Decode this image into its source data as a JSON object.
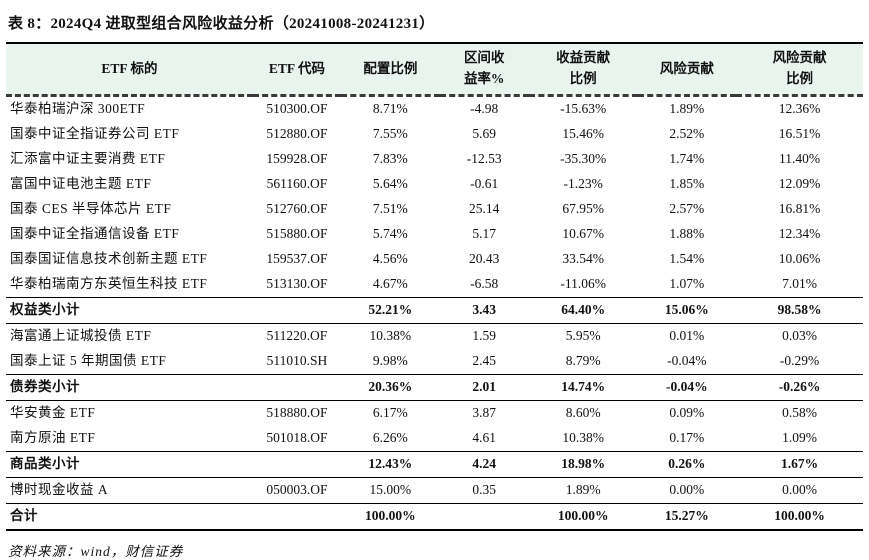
{
  "title": "表 8：2024Q4 进取型组合风险收益分析（20241008-20241231）",
  "source_note": "资料来源：wind，财信证券",
  "colors": {
    "header_background": "#e9f4ef",
    "border": "#000000",
    "text": "#111111"
  },
  "table": {
    "headers": [
      "ETF 标的",
      "ETF 代码",
      "配置比例",
      "区间收\n益率%",
      "收益贡献\n比例",
      "风险贡献",
      "风险贡献\n比例"
    ],
    "rows": [
      {
        "style": "normal",
        "cells": [
          "华泰柏瑞沪深 300ETF",
          "510300.OF",
          "8.71%",
          "-4.98",
          "-15.63%",
          "1.89%",
          "12.36%"
        ]
      },
      {
        "style": "normal",
        "cells": [
          "国泰中证全指证券公司 ETF",
          "512880.OF",
          "7.55%",
          "5.69",
          "15.46%",
          "2.52%",
          "16.51%"
        ]
      },
      {
        "style": "normal",
        "cells": [
          "汇添富中证主要消费 ETF",
          "159928.OF",
          "7.83%",
          "-12.53",
          "-35.30%",
          "1.74%",
          "11.40%"
        ]
      },
      {
        "style": "normal",
        "cells": [
          "富国中证电池主题 ETF",
          "561160.OF",
          "5.64%",
          "-0.61",
          "-1.23%",
          "1.85%",
          "12.09%"
        ]
      },
      {
        "style": "normal",
        "cells": [
          "国泰 CES 半导体芯片 ETF",
          "512760.OF",
          "7.51%",
          "25.14",
          "67.95%",
          "2.57%",
          "16.81%"
        ]
      },
      {
        "style": "normal",
        "cells": [
          "国泰中证全指通信设备 ETF",
          "515880.OF",
          "5.74%",
          "5.17",
          "10.67%",
          "1.88%",
          "12.34%"
        ]
      },
      {
        "style": "normal",
        "cells": [
          "国泰国证信息技术创新主题 ETF",
          "159537.OF",
          "4.56%",
          "20.43",
          "33.54%",
          "1.54%",
          "10.06%"
        ]
      },
      {
        "style": "normal",
        "cells": [
          "华泰柏瑞南方东英恒生科技 ETF",
          "513130.OF",
          "4.67%",
          "-6.58",
          "-11.06%",
          "1.07%",
          "7.01%"
        ]
      },
      {
        "style": "subtotal",
        "cells": [
          "权益类小计",
          "",
          "52.21%",
          "3.43",
          "64.40%",
          "15.06%",
          "98.58%"
        ]
      },
      {
        "style": "normal",
        "cells": [
          "海富通上证城投债 ETF",
          "511220.OF",
          "10.38%",
          "1.59",
          "5.95%",
          "0.01%",
          "0.03%"
        ]
      },
      {
        "style": "normal",
        "cells": [
          "国泰上证 5 年期国债 ETF",
          "511010.SH",
          "9.98%",
          "2.45",
          "8.79%",
          "-0.04%",
          "-0.29%"
        ]
      },
      {
        "style": "subtotal",
        "cells": [
          "债券类小计",
          "",
          "20.36%",
          "2.01",
          "14.74%",
          "-0.04%",
          "-0.26%"
        ]
      },
      {
        "style": "normal",
        "cells": [
          "华安黄金 ETF",
          "518880.OF",
          "6.17%",
          "3.87",
          "8.60%",
          "0.09%",
          "0.58%"
        ]
      },
      {
        "style": "normal",
        "cells": [
          "南方原油 ETF",
          "501018.OF",
          "6.26%",
          "4.61",
          "10.38%",
          "0.17%",
          "1.09%"
        ]
      },
      {
        "style": "subtotal",
        "cells": [
          "商品类小计",
          "",
          "12.43%",
          "4.24",
          "18.98%",
          "0.26%",
          "1.67%"
        ]
      },
      {
        "style": "normal",
        "cells": [
          "博时现金收益 A",
          "050003.OF",
          "15.00%",
          "0.35",
          "1.89%",
          "0.00%",
          "0.00%"
        ]
      },
      {
        "style": "total",
        "cells": [
          "合计",
          "",
          "100.00%",
          "",
          "100.00%",
          "15.27%",
          "100.00%"
        ]
      }
    ]
  }
}
